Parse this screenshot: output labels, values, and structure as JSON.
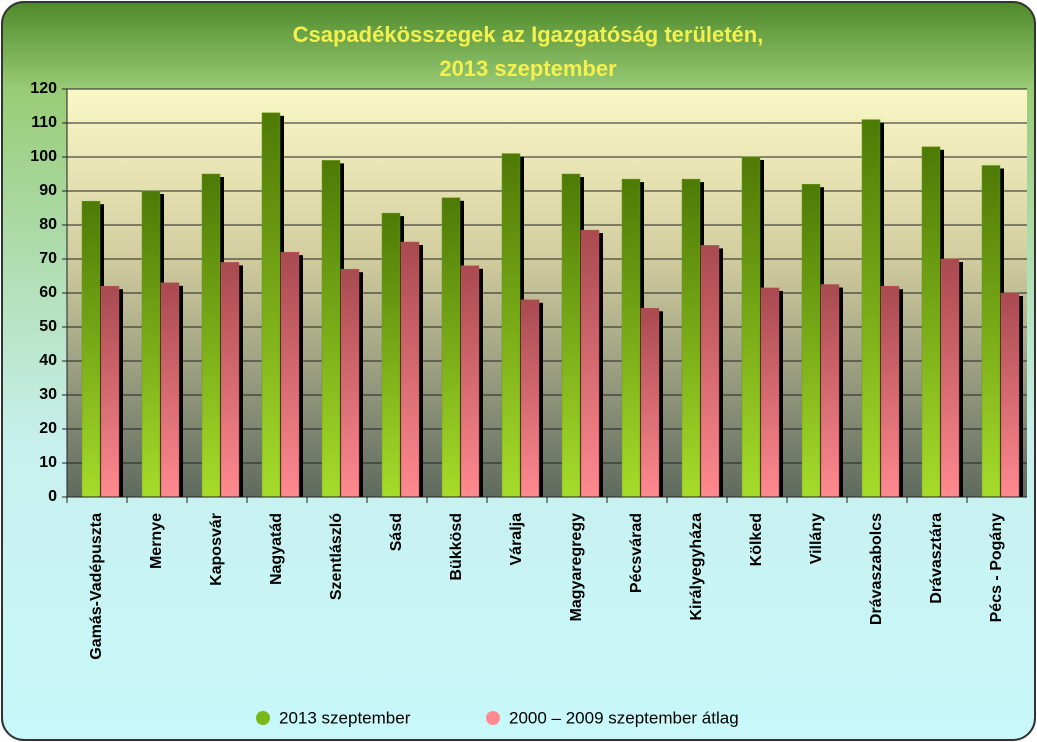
{
  "chart_data": {
    "type": "bar",
    "title": [
      "Csapadékösszegek az Igazgatóság területén,",
      "2013  szeptember"
    ],
    "categories": [
      "Gamás-Vadépuszta",
      "Mernye",
      "Kaposvár",
      "Nagyatád",
      "Szentlászló",
      "Sásd",
      "Bükkösd",
      "Váralja",
      "Magyaregregy",
      "Pécsvárad",
      "Királyegyháza",
      "Kölked",
      "Villány",
      "Drávaszabolcs",
      "Drávasztára",
      "Pécs - Pogány"
    ],
    "series": [
      {
        "name": "2013 szeptember",
        "color": "#6a9a10",
        "values": [
          87,
          90,
          95,
          113,
          99,
          83.5,
          88,
          101,
          95,
          93.5,
          93.5,
          100,
          92,
          111,
          103,
          97.5
        ]
      },
      {
        "name": "2000 – 2009 szeptember átlag",
        "color": "#c0505a",
        "values": [
          62,
          63,
          69,
          72,
          67,
          75,
          68,
          58,
          78.5,
          55.5,
          74,
          61.5,
          62.5,
          62,
          70,
          60
        ]
      }
    ],
    "ylim": [
      0,
      120
    ],
    "yticks": [
      0,
      10,
      20,
      30,
      40,
      50,
      60,
      70,
      80,
      90,
      100,
      110,
      120
    ],
    "grid": true,
    "legend": "bottom"
  }
}
